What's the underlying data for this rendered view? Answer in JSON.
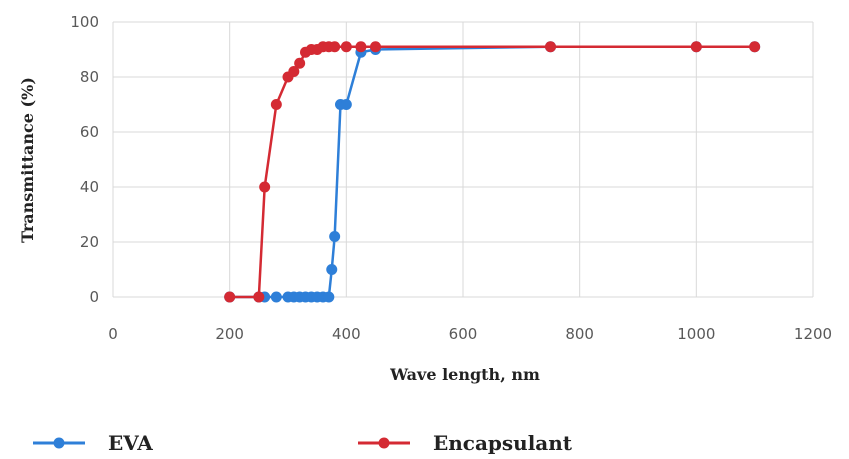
{
  "chart_data": {
    "type": "line",
    "xlabel": "Wave length, nm",
    "ylabel": "Transmittance (%)",
    "xlim": [
      0,
      1200
    ],
    "ylim": [
      0,
      100
    ],
    "xticks": [
      "0",
      "200",
      "400",
      "600",
      "800",
      "1000",
      "1200"
    ],
    "yticks": [
      "0",
      "20",
      "40",
      "60",
      "80",
      "100"
    ],
    "grid": true,
    "legend_position": "bottom",
    "series": [
      {
        "name": "EVA",
        "color": "#2e7fd8",
        "x": [
          200,
          250,
          260,
          280,
          300,
          310,
          320,
          330,
          340,
          350,
          360,
          370,
          375,
          380,
          390,
          400,
          425,
          450,
          750,
          1000,
          1100
        ],
        "y": [
          0,
          0,
          0,
          0,
          0,
          0,
          0,
          0,
          0,
          0,
          0,
          0,
          10,
          22,
          70,
          70,
          89,
          90,
          91,
          91,
          91
        ]
      },
      {
        "name": "Encapsulant",
        "color": "#d42a33",
        "x": [
          200,
          250,
          260,
          280,
          300,
          310,
          320,
          330,
          340,
          350,
          360,
          370,
          380,
          400,
          425,
          450,
          750,
          1000,
          1100
        ],
        "y": [
          0,
          0,
          40,
          70,
          80,
          82,
          85,
          89,
          90,
          90,
          91,
          91,
          91,
          91,
          91,
          91,
          91,
          91,
          91
        ]
      }
    ]
  }
}
